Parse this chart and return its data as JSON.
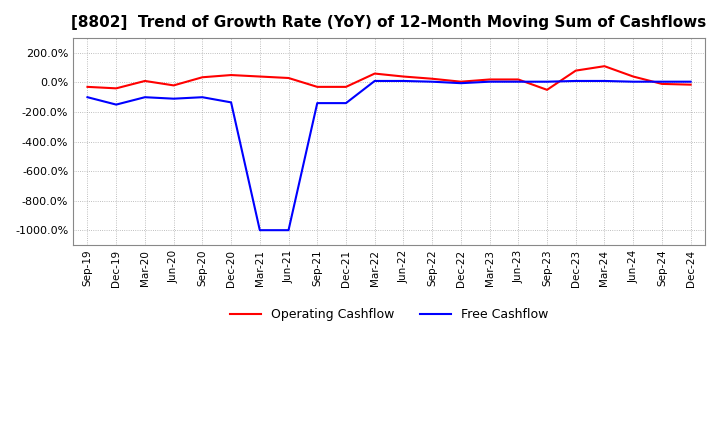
{
  "title": "[8802]  Trend of Growth Rate (YoY) of 12-Month Moving Sum of Cashflows",
  "title_fontsize": 11,
  "background_color": "#ffffff",
  "plot_background_color": "#ffffff",
  "grid_color": "#aaaaaa",
  "ylim": [
    -1100,
    300
  ],
  "yticks": [
    200,
    0,
    -200,
    -400,
    -600,
    -800,
    -1000
  ],
  "x_labels": [
    "Sep-19",
    "Dec-19",
    "Mar-20",
    "Jun-20",
    "Sep-20",
    "Dec-20",
    "Mar-21",
    "Jun-21",
    "Sep-21",
    "Dec-21",
    "Mar-22",
    "Jun-22",
    "Sep-22",
    "Dec-22",
    "Mar-23",
    "Jun-23",
    "Sep-23",
    "Dec-23",
    "Mar-24",
    "Jun-24",
    "Sep-24",
    "Dec-24"
  ],
  "operating_cf": [
    -30,
    -40,
    10,
    -20,
    35,
    50,
    40,
    30,
    -30,
    -30,
    60,
    40,
    25,
    5,
    20,
    20,
    -50,
    80,
    110,
    40,
    -10,
    -15
  ],
  "free_cf": [
    -100,
    -150,
    -100,
    -110,
    -100,
    -135,
    -1000,
    -1000,
    -140,
    -140,
    10,
    10,
    5,
    -5,
    5,
    5,
    5,
    10,
    10,
    5,
    5,
    5
  ],
  "op_color": "#ff0000",
  "free_color": "#0000ff",
  "line_width": 1.5,
  "legend_op": "Operating Cashflow",
  "legend_free": "Free Cashflow"
}
